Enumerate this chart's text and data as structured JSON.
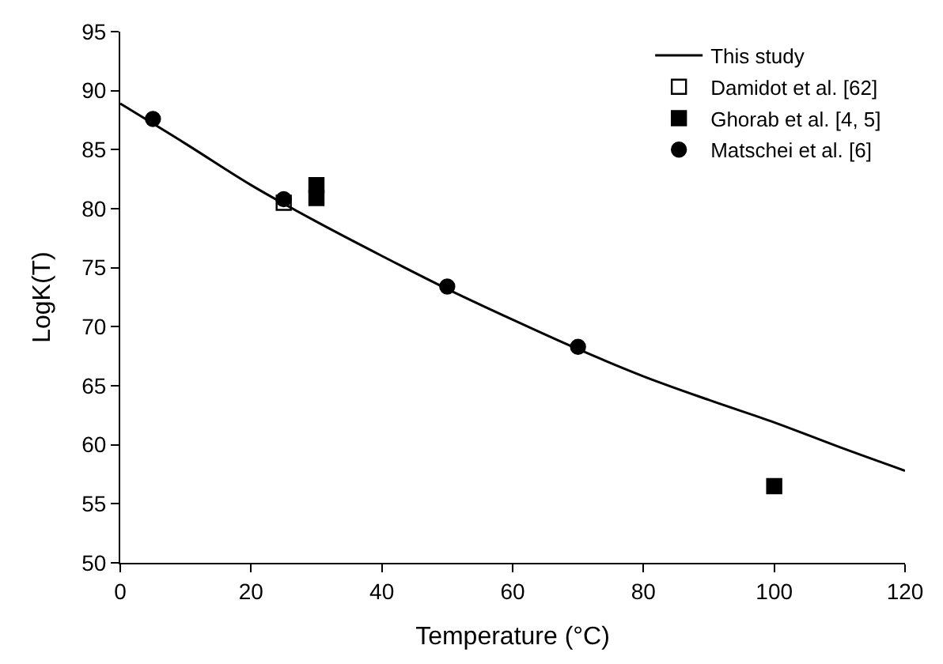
{
  "chart_data": {
    "type": "scatter",
    "xlabel": "Temperature (°C)",
    "ylabel": "LogK(T)",
    "xlim": [
      0,
      120
    ],
    "xticks": [
      0,
      20,
      40,
      60,
      80,
      100,
      120
    ],
    "ylim": [
      50,
      95
    ],
    "yticks": [
      50,
      55,
      60,
      65,
      70,
      75,
      80,
      85,
      90,
      95
    ],
    "legend": "top right",
    "series": [
      {
        "name": "This study",
        "type": "line",
        "color": "#000000",
        "marker": "none",
        "line_style": "solid",
        "x": [
          0,
          10,
          20,
          30,
          40,
          50,
          60,
          70,
          80,
          90,
          100,
          110,
          120
        ],
        "values": [
          88.9,
          85.5,
          82.0,
          78.9,
          76.0,
          73.2,
          70.6,
          68.1,
          65.8,
          63.8,
          61.9,
          59.8,
          57.8
        ]
      },
      {
        "name": "Damidot et al. [62]",
        "color": "#000000",
        "marker": "square-open",
        "x": [
          25
        ],
        "values": [
          80.5
        ]
      },
      {
        "name": "Ghorab et al. [4, 5]",
        "color": "#000000",
        "marker": "square",
        "x": [
          30,
          30,
          100
        ],
        "values": [
          80.9,
          82.0,
          56.5
        ]
      },
      {
        "name": "Matschei et al. [6]",
        "color": "#000000",
        "marker": "circle",
        "x": [
          5,
          25,
          50,
          70
        ],
        "values": [
          87.6,
          80.8,
          73.4,
          68.3
        ]
      }
    ]
  }
}
